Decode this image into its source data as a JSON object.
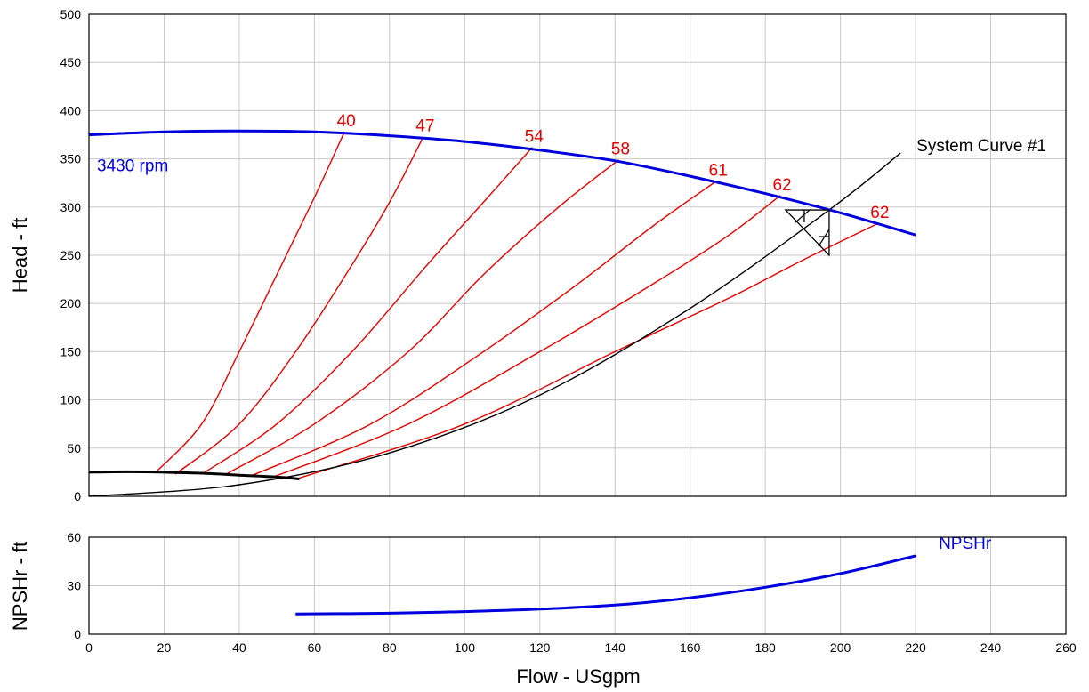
{
  "chart_data": [
    {
      "type": "line",
      "xlabel": "Flow - USgpm",
      "ylabel": "Head - ft",
      "xlim": [
        0,
        260
      ],
      "ylim": [
        0,
        500
      ],
      "xticks": [
        0,
        20,
        40,
        60,
        80,
        100,
        120,
        140,
        160,
        180,
        200,
        220,
        240,
        260
      ],
      "yticks": [
        0,
        50,
        100,
        150,
        200,
        250,
        300,
        350,
        400,
        450,
        500
      ],
      "grid": true,
      "pump_curve": {
        "name": "3430 rpm",
        "color": "#0000dd",
        "x": [
          0,
          20,
          40,
          60,
          80,
          100,
          120,
          140,
          160,
          180,
          200,
          220
        ],
        "y": [
          375,
          378,
          379,
          378,
          374,
          368,
          359,
          348,
          332,
          314,
          294,
          271
        ]
      },
      "efficiency_curves": [
        {
          "name": "40",
          "color": "#e00000",
          "x": [
            17.5,
            30,
            40,
            50,
            60,
            68
          ],
          "y": [
            24,
            75,
            150,
            230,
            310,
            378
          ]
        },
        {
          "name": "47",
          "color": "#e00000",
          "x": [
            23,
            40,
            55,
            70,
            80,
            89
          ],
          "y": [
            23,
            75,
            150,
            240,
            305,
            373
          ]
        },
        {
          "name": "54",
          "color": "#e00000",
          "x": [
            30,
            50,
            70,
            90,
            105,
            118
          ],
          "y": [
            23,
            75,
            150,
            240,
            305,
            362
          ]
        },
        {
          "name": "58",
          "color": "#e00000",
          "x": [
            36,
            60,
            85,
            105,
            125,
            141
          ],
          "y": [
            22,
            75,
            150,
            230,
            300,
            349
          ]
        },
        {
          "name": "61",
          "color": "#e00000",
          "x": [
            43,
            75,
            105,
            130,
            150,
            167
          ],
          "y": [
            21,
            75,
            150,
            220,
            280,
            327
          ]
        },
        {
          "name": "62",
          "color": "#e00000",
          "x": [
            49,
            85,
            120,
            150,
            170,
            184
          ],
          "y": [
            20,
            75,
            150,
            220,
            270,
            312
          ]
        },
        {
          "name": "62",
          "color": "#e00000",
          "x": [
            56,
            100,
            140,
            170,
            190,
            210
          ],
          "y": [
            19,
            75,
            150,
            205,
            245,
            283
          ]
        }
      ],
      "npsha_curve": {
        "color": "#000000",
        "x": [
          0,
          10,
          20,
          30,
          40,
          50,
          56
        ],
        "y": [
          25,
          25.5,
          25,
          24,
          22,
          20,
          18
        ]
      },
      "system_curve": {
        "name": "System Curve #1",
        "color": "#000000",
        "x": [
          0,
          40,
          80,
          120,
          160,
          197,
          216
        ],
        "y": [
          0,
          12,
          45,
          105,
          195,
          297,
          356
        ]
      },
      "operating_point": {
        "x": 197,
        "y": 297
      }
    },
    {
      "type": "line",
      "ylabel": "NPSHr - ft",
      "xlim": [
        0,
        260
      ],
      "ylim": [
        0,
        60
      ],
      "xticks": [
        0,
        20,
        40,
        60,
        80,
        100,
        120,
        140,
        160,
        180,
        200,
        220,
        240,
        260
      ],
      "yticks": [
        0,
        30,
        60
      ],
      "grid": true,
      "npshr_curve": {
        "name": "NPSHr",
        "color": "#0000dd",
        "x": [
          55,
          80,
          100,
          120,
          140,
          160,
          180,
          200,
          220
        ],
        "y": [
          12.5,
          13,
          14,
          15.5,
          18,
          22.5,
          29,
          37.5,
          48.5
        ]
      }
    }
  ]
}
